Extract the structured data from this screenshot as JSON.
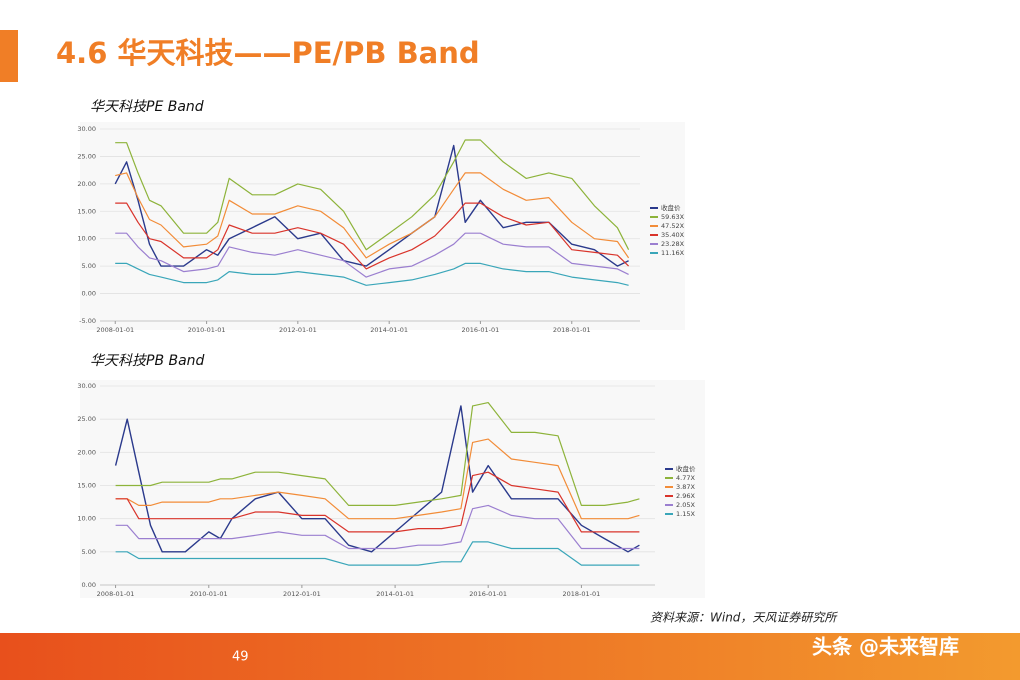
{
  "slide": {
    "title": "4.6 华天科技——PE/PB Band",
    "source": "资料来源：Wind，天风证券研究所",
    "page_number": "49",
    "watermark": "头条 @未来智库"
  },
  "chart_data": [
    {
      "type": "line",
      "title": "华天科技PE Band",
      "grid": true,
      "legend": "right",
      "x": [
        "2008-01-01",
        "2008-04-01",
        "2008-07-01",
        "2008-10-01",
        "2009-01-01",
        "2009-07-01",
        "2010-01-01",
        "2010-04-01",
        "2010-07-01",
        "2011-01-01",
        "2011-07-01",
        "2012-01-01",
        "2012-07-01",
        "2013-01-01",
        "2013-07-01",
        "2014-01-01",
        "2014-07-01",
        "2015-01-01",
        "2015-06-01",
        "2015-09-01",
        "2016-01-01",
        "2016-07-01",
        "2017-01-01",
        "2017-07-01",
        "2018-01-01",
        "2018-07-01",
        "2019-01-01",
        "2019-04-01"
      ],
      "xlim": [
        "2007-09-01",
        "2019-07-01"
      ],
      "xticks": [
        "2008-01-01",
        "2010-01-01",
        "2012-01-01",
        "2014-01-01",
        "2016-01-01",
        "2018-01-01"
      ],
      "ylim": [
        -5,
        30
      ],
      "yticks": [
        {
          "value": -5,
          "label": "-5.00"
        },
        {
          "value": 0,
          "label": "0.00"
        },
        {
          "value": 5,
          "label": "5.00"
        },
        {
          "value": 10,
          "label": "10.00"
        },
        {
          "value": 15,
          "label": "15.00"
        },
        {
          "value": 20,
          "label": "20.00"
        },
        {
          "value": 25,
          "label": "25.00"
        },
        {
          "value": 30,
          "label": "30.00"
        }
      ],
      "series": [
        {
          "name": "收盘价",
          "color": "#2b3a8c",
          "values": [
            20,
            24,
            17,
            9,
            5,
            5,
            8,
            7,
            10,
            12,
            14,
            10,
            11,
            6,
            5,
            8,
            11,
            14,
            27,
            13,
            17,
            12,
            13,
            13,
            9,
            8,
            5,
            6
          ]
        },
        {
          "name": "59.63X",
          "color": "#8db33a",
          "values": [
            27.5,
            27.5,
            22,
            17,
            16,
            11,
            11,
            13,
            21,
            18,
            18,
            20,
            19,
            15,
            8,
            11,
            14,
            18,
            24,
            28,
            28,
            24,
            21,
            22,
            21,
            16,
            12,
            8
          ]
        },
        {
          "name": "47.52X",
          "color": "#f28c38",
          "values": [
            21.5,
            22,
            17.5,
            13.5,
            12.5,
            8.5,
            9,
            10.5,
            17,
            14.5,
            14.5,
            16,
            15,
            12,
            6.5,
            9,
            11,
            14,
            19,
            22,
            22,
            19,
            17,
            17.5,
            13,
            10,
            9.5,
            6.5
          ]
        },
        {
          "name": "35.40X",
          "color": "#d9342b",
          "values": [
            16.5,
            16.5,
            13,
            10,
            9.5,
            6.5,
            6.5,
            8,
            12.5,
            11,
            11,
            12,
            11,
            9,
            4.5,
            6.5,
            8,
            10.5,
            14,
            16.5,
            16.5,
            14,
            12.5,
            13,
            8,
            7.5,
            7,
            5
          ]
        },
        {
          "name": "23.28X",
          "color": "#9b7fd0",
          "values": [
            11,
            11,
            8.5,
            6.5,
            6,
            4,
            4.5,
            5,
            8.5,
            7.5,
            7,
            8,
            7,
            6,
            3,
            4.5,
            5,
            7,
            9,
            11,
            11,
            9,
            8.5,
            8.5,
            5.5,
            5,
            4.5,
            3.5
          ]
        },
        {
          "name": "11.16X",
          "color": "#3aa6b9",
          "values": [
            5.5,
            5.5,
            4.5,
            3.5,
            3,
            2,
            2,
            2.5,
            4,
            3.5,
            3.5,
            4,
            3.5,
            3,
            1.5,
            2,
            2.5,
            3.5,
            4.5,
            5.5,
            5.5,
            4.5,
            4,
            4,
            3,
            2.5,
            2,
            1.5
          ]
        }
      ]
    },
    {
      "type": "line",
      "title": "华天科技PB Band",
      "grid": true,
      "legend": "right",
      "x": [
        "2008-01-01",
        "2008-04-01",
        "2008-07-01",
        "2008-10-01",
        "2009-01-01",
        "2009-07-01",
        "2010-01-01",
        "2010-04-01",
        "2010-07-01",
        "2011-01-01",
        "2011-07-01",
        "2012-01-01",
        "2012-07-01",
        "2013-01-01",
        "2013-07-01",
        "2014-01-01",
        "2014-07-01",
        "2015-01-01",
        "2015-06-01",
        "2015-09-01",
        "2016-01-01",
        "2016-07-01",
        "2017-01-01",
        "2017-07-01",
        "2018-01-01",
        "2018-07-01",
        "2019-01-01",
        "2019-04-01"
      ],
      "xlim": [
        "2007-09-01",
        "2019-08-01"
      ],
      "xticks": [
        "2008-01-01",
        "2010-01-01",
        "2012-01-01",
        "2014-01-01",
        "2016-01-01",
        "2018-01-01"
      ],
      "ylim": [
        0,
        30
      ],
      "yticks": [
        {
          "value": 0,
          "label": "0.00"
        },
        {
          "value": 5,
          "label": "5.00"
        },
        {
          "value": 10,
          "label": "10.00"
        },
        {
          "value": 15,
          "label": "15.00"
        },
        {
          "value": 20,
          "label": "20.00"
        },
        {
          "value": 25,
          "label": "25.00"
        },
        {
          "value": 30,
          "label": "30.00"
        }
      ],
      "series": [
        {
          "name": "收盘价",
          "color": "#2b3a8c",
          "values": [
            18,
            25,
            17,
            9,
            5,
            5,
            8,
            7,
            10,
            13,
            14,
            10,
            10,
            6,
            5,
            8,
            11,
            14,
            27,
            14,
            18,
            13,
            13,
            13,
            9,
            7,
            5,
            6
          ]
        },
        {
          "name": "4.77X",
          "color": "#8db33a",
          "values": [
            15,
            15,
            15,
            15,
            15.5,
            15.5,
            15.5,
            16,
            16,
            17,
            17,
            16.5,
            16,
            12,
            12,
            12,
            12.5,
            13,
            13.5,
            27,
            27.5,
            23,
            23,
            22.5,
            12,
            12,
            12.5,
            13
          ]
        },
        {
          "name": "3.87X",
          "color": "#f28c38",
          "values": [
            13,
            13,
            12,
            12,
            12.5,
            12.5,
            12.5,
            13,
            13,
            13.5,
            14,
            13.5,
            13,
            10,
            10,
            10,
            10.5,
            11,
            11.5,
            21.5,
            22,
            19,
            18.5,
            18,
            10,
            10,
            10,
            10.5
          ]
        },
        {
          "name": "2.96X",
          "color": "#d9342b",
          "values": [
            13,
            13,
            10,
            10,
            10,
            10,
            10,
            10,
            10,
            11,
            11,
            10.5,
            10.5,
            8,
            8,
            8,
            8.5,
            8.5,
            9,
            16.5,
            17,
            15,
            14.5,
            14,
            8,
            8,
            8,
            8
          ]
        },
        {
          "name": "2.05X",
          "color": "#9b7fd0",
          "values": [
            9,
            9,
            7,
            7,
            7,
            7,
            7,
            7,
            7,
            7.5,
            8,
            7.5,
            7.5,
            5.5,
            5.5,
            5.5,
            6,
            6,
            6.5,
            11.5,
            12,
            10.5,
            10,
            10,
            5.5,
            5.5,
            5.5,
            5.5
          ]
        },
        {
          "name": "1.15X",
          "color": "#3aa6b9",
          "values": [
            5,
            5,
            4,
            4,
            4,
            4,
            4,
            4,
            4,
            4,
            4,
            4,
            4,
            3,
            3,
            3,
            3,
            3.5,
            3.5,
            6.5,
            6.5,
            5.5,
            5.5,
            5.5,
            3,
            3,
            3,
            3
          ]
        }
      ]
    }
  ]
}
